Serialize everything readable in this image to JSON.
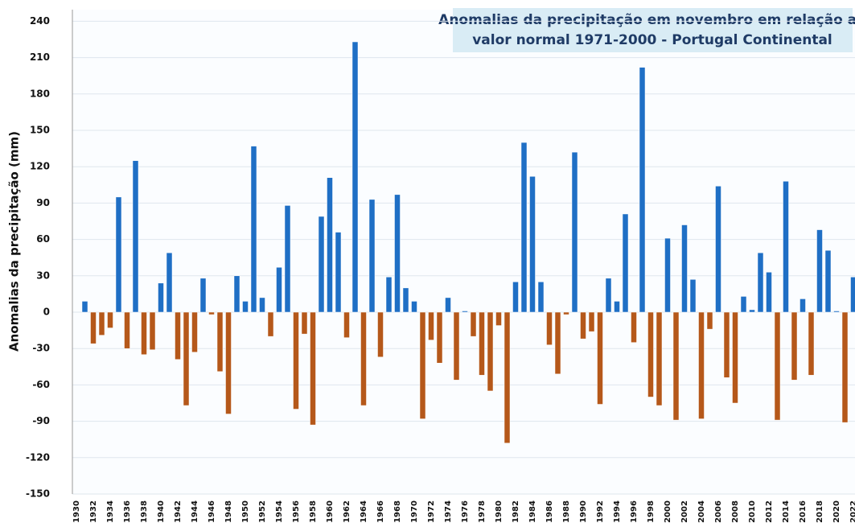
{
  "chart_data": {
    "type": "bar",
    "title": [
      "Anomalias da precipitação em novembro em relação ao",
      "valor normal  1971-2000 - Portugal Continental"
    ],
    "y_label": "Anomalias da precipitação (mm)",
    "categories": [
      "1930",
      null,
      "1932",
      null,
      "1934",
      null,
      "1936",
      null,
      "1938",
      null,
      "1940",
      null,
      "1942",
      null,
      "1944",
      null,
      "1946",
      null,
      "1948",
      null,
      "1950",
      null,
      "1952",
      null,
      "1954",
      null,
      "1956",
      null,
      "1958",
      null,
      "1960",
      null,
      "1962",
      null,
      "1964",
      null,
      "1966",
      null,
      "1968",
      null,
      "1970",
      null,
      "1972",
      null,
      "1974",
      null,
      "1976",
      null,
      "1978",
      null,
      "1980",
      null,
      "1982",
      null,
      "1984",
      null,
      "1986",
      null,
      "1988",
      null,
      "1990",
      null,
      "1992",
      null,
      "1994",
      null,
      "1996",
      null,
      "1998",
      null,
      "2000",
      null,
      "2002",
      null,
      "2004",
      null,
      "2006",
      null,
      "2008",
      null,
      "2010",
      null,
      "2012",
      null,
      "2014",
      null,
      "2016",
      null,
      "2018",
      null,
      "2020",
      null,
      "2022"
    ],
    "values": [
      null,
      9,
      -26,
      -19,
      -13,
      95,
      -30,
      125,
      -35,
      -31,
      24,
      49,
      -39,
      -77,
      -33,
      28,
      -2,
      -49,
      -84,
      30,
      9,
      137,
      12,
      -20,
      37,
      88,
      -80,
      -18,
      -93,
      79,
      111,
      66,
      -21,
      223,
      -77,
      93,
      -37,
      29,
      97,
      20,
      9,
      -88,
      -23,
      -42,
      12,
      -56,
      1,
      -20,
      -52,
      -65,
      -11,
      -108,
      25,
      140,
      112,
      25,
      -27,
      -51,
      -2,
      132,
      -22,
      -16,
      -76,
      28,
      9,
      81,
      -25,
      202,
      -70,
      -77,
      61,
      -89,
      72,
      27,
      -88,
      -14,
      104,
      -54,
      -75,
      13,
      2,
      49,
      33,
      -89,
      108,
      -56,
      11,
      -52,
      68,
      51,
      1,
      -91,
      29
    ],
    "positive_color": "#1f6fc5",
    "negative_color": "#b5581a",
    "ylim": [
      -150,
      250
    ],
    "yticks": [
      -150,
      -120,
      -90,
      -60,
      -30,
      0,
      30,
      60,
      90,
      120,
      150,
      180,
      210,
      240
    ],
    "grid": true
  }
}
